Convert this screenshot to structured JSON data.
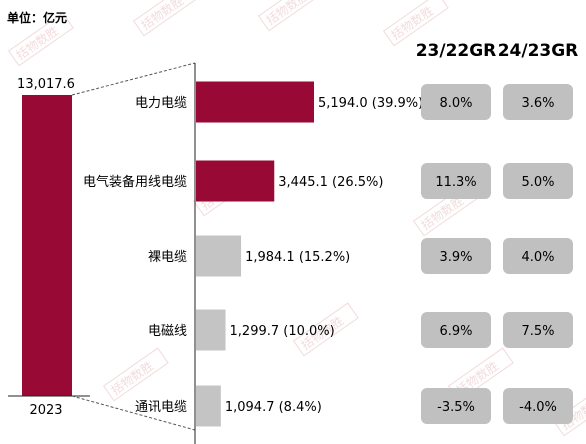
{
  "unit_label": "单位：亿元",
  "chart_data": {
    "type": "bar",
    "total": {
      "year": "2023",
      "value": 13017.6,
      "value_label": "13,017.6"
    },
    "categories": [
      "电力电缆",
      "电气装备用线电缆",
      "裸电缆",
      "电磁线",
      "通讯电缆"
    ],
    "values": [
      5194.0,
      3445.1,
      1984.1,
      1299.7,
      1094.7
    ],
    "value_labels": [
      "5,194.0 (39.9%)",
      "3,445.1 (26.5%)",
      "1,984.1 (15.2%)",
      "1,299.7 (10.0%)",
      "1,094.7 (8.4%)"
    ],
    "growth_headers": [
      "23/22GR",
      "24/23GR"
    ],
    "growth_23_22": [
      "8.0%",
      "11.3%",
      "3.9%",
      "6.9%",
      "-3.5%"
    ],
    "growth_24_23": [
      "3.6%",
      "5.0%",
      "4.0%",
      "7.5%",
      "-4.0%"
    ],
    "colors": {
      "highlight": "#980a35",
      "muted": "#c4c4c4",
      "badge": "#c0c0c0"
    },
    "highlighted": [
      true,
      true,
      false,
      false,
      false
    ]
  },
  "watermark": "括物数胜"
}
